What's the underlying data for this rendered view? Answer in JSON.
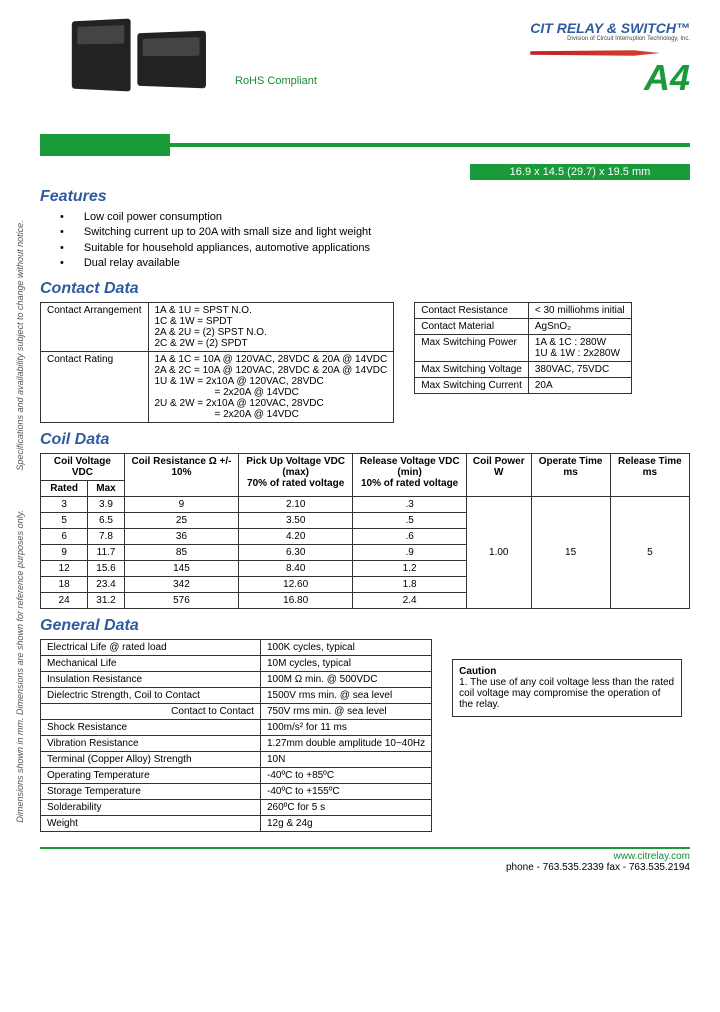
{
  "header": {
    "rohs": "RoHS Compliant",
    "brand": "CIT RELAY & SWITCH™",
    "brand_sub": "Division of Circuit Interruption Technology, Inc.",
    "model": "A4",
    "dimensions": "16.9 x 14.5 (29.7) x 19.5 mm"
  },
  "sidetext": {
    "line1": "Dimensions shown in mm. Dimensions are shown for reference purposes only.",
    "line2": "Specifications and availability subject to change without notice."
  },
  "features": {
    "title": "Features",
    "items": [
      "Low coil power consumption",
      "Switching current up to 20A with small size and light weight",
      "Suitable for household appliances, automotive applications",
      "Dual relay available"
    ]
  },
  "contact_data": {
    "title": "Contact Data",
    "left": {
      "r1c1": "Contact Arrangement",
      "r1c2_a": "1A & 1U = SPST N.O.",
      "r1c2_b": "1C & 1W = SPDT",
      "r1c2_c": "2A & 2U = (2) SPST N.O.",
      "r1c2_d": "2C & 2W = (2) SPDT",
      "r2c1": "Contact Rating",
      "r2c2_a": "1A & 1C = 10A @ 120VAC, 28VDC & 20A @ 14VDC",
      "r2c2_b": "2A & 2C = 10A @ 120VAC, 28VDC & 20A @ 14VDC",
      "r2c2_c": "1U & 1W = 2x10A @ 120VAC, 28VDC",
      "r2c2_d": "= 2x20A @ 14VDC",
      "r2c2_e": "2U & 2W = 2x10A @ 120VAC, 28VDC",
      "r2c2_f": "= 2x20A @ 14VDC"
    },
    "right": {
      "r1c1": "Contact Resistance",
      "r1c2": "< 30 milliohms initial",
      "r2c1": "Contact Material",
      "r2c2": "AgSnO₂",
      "r3c1": "Max Switching Power",
      "r3c2a": "1A & 1C : 280W",
      "r3c2b": "1U & 1W : 2x280W",
      "r4c1": "Max Switching Voltage",
      "r4c2": "380VAC, 75VDC",
      "r5c1": "Max Switching Current",
      "r5c2": "20A"
    }
  },
  "coil_data": {
    "title": "Coil Data",
    "headers": {
      "h1": "Coil Voltage VDC",
      "h1a": "Rated",
      "h1b": "Max",
      "h2": "Coil Resistance Ω +/- 10%",
      "h3": "Pick Up Voltage VDC (max)",
      "h3s": "70% of rated voltage",
      "h4": "Release Voltage VDC (min)",
      "h4s": "10% of rated voltage",
      "h5": "Coil Power W",
      "h6": "Operate Time ms",
      "h7": "Release Time ms"
    },
    "rows": [
      {
        "rated": "3",
        "max": "3.9",
        "res": "9",
        "pickup": "2.10",
        "release": ".3"
      },
      {
        "rated": "5",
        "max": "6.5",
        "res": "25",
        "pickup": "3.50",
        "release": ".5"
      },
      {
        "rated": "6",
        "max": "7.8",
        "res": "36",
        "pickup": "4.20",
        "release": ".6"
      },
      {
        "rated": "9",
        "max": "11.7",
        "res": "85",
        "pickup": "6.30",
        "release": ".9"
      },
      {
        "rated": "12",
        "max": "15.6",
        "res": "145",
        "pickup": "8.40",
        "release": "1.2"
      },
      {
        "rated": "18",
        "max": "23.4",
        "res": "342",
        "pickup": "12.60",
        "release": "1.8"
      },
      {
        "rated": "24",
        "max": "31.2",
        "res": "576",
        "pickup": "16.80",
        "release": "2.4"
      }
    ],
    "merged": {
      "power": "1.00",
      "operate": "15",
      "release": "5"
    }
  },
  "general_data": {
    "title": "General Data",
    "rows": [
      {
        "k": "Electrical Life @ rated load",
        "v": "100K cycles, typical"
      },
      {
        "k": "Mechanical Life",
        "v": "10M cycles, typical"
      },
      {
        "k": "Insulation Resistance",
        "v": "100M Ω min. @ 500VDC"
      },
      {
        "k": "Dielectric Strength, Coil to Contact",
        "v": "1500V rms min. @ sea level"
      },
      {
        "k": "Contact to Contact",
        "v": "750V rms min. @ sea level"
      },
      {
        "k": "Shock Resistance",
        "v": "100m/s² for 11 ms"
      },
      {
        "k": "Vibration Resistance",
        "v": "1.27mm double amplitude 10~40Hz"
      },
      {
        "k": "Terminal (Copper Alloy) Strength",
        "v": "10N"
      },
      {
        "k": "Operating Temperature",
        "v": "-40ºC to +85ºC"
      },
      {
        "k": "Storage Temperature",
        "v": "-40ºC to +155ºC"
      },
      {
        "k": "Solderability",
        "v": "260ºC for 5 s"
      },
      {
        "k": "Weight",
        "v": "12g & 24g"
      }
    ],
    "caution_title": "Caution",
    "caution_text": "1. The use of any coil voltage less than the rated coil voltage may compromise the operation of the relay."
  },
  "footer": {
    "url": "www.citrelay.com",
    "contact": "phone - 763.535.2339    fax - 763.535.2194"
  },
  "colors": {
    "green": "#1a9a3a",
    "blue": "#305b9e",
    "red": "#c02020"
  }
}
